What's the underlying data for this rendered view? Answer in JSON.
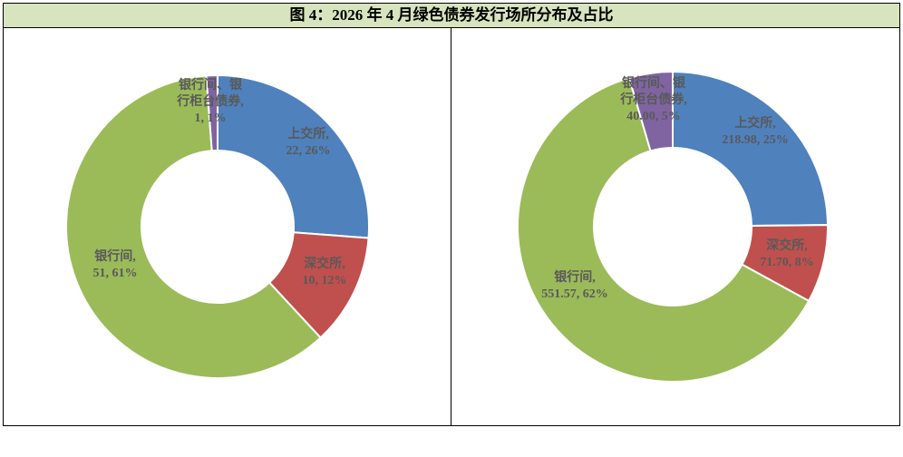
{
  "title": "图 4：2026 年 4 月绿色债券发行场所分布及占比",
  "chart_data": [
    {
      "type": "donut",
      "categories": [
        "上交所,",
        "深交所,",
        "银行间,",
        "银行间、银行柜台债券,"
      ],
      "values": [
        22,
        10,
        51,
        1
      ],
      "value_labels": [
        "22, 26%",
        "10, 12%",
        "51, 61%",
        "1, 1%"
      ],
      "colors": [
        "#4f81bd",
        "#c0504d",
        "#9bbb59",
        "#8064a2"
      ]
    },
    {
      "type": "donut",
      "categories": [
        "上交所,",
        "深交所,",
        "银行间,",
        "银行间、银行柜台债券,"
      ],
      "values": [
        218.98,
        71.7,
        551.57,
        40.0
      ],
      "value_labels": [
        "218.98, 25%",
        "71.70, 8%",
        "551.57, 62%",
        "40.00, 5%"
      ],
      "colors": [
        "#4f81bd",
        "#c0504d",
        "#9bbb59",
        "#8064a2"
      ]
    }
  ]
}
